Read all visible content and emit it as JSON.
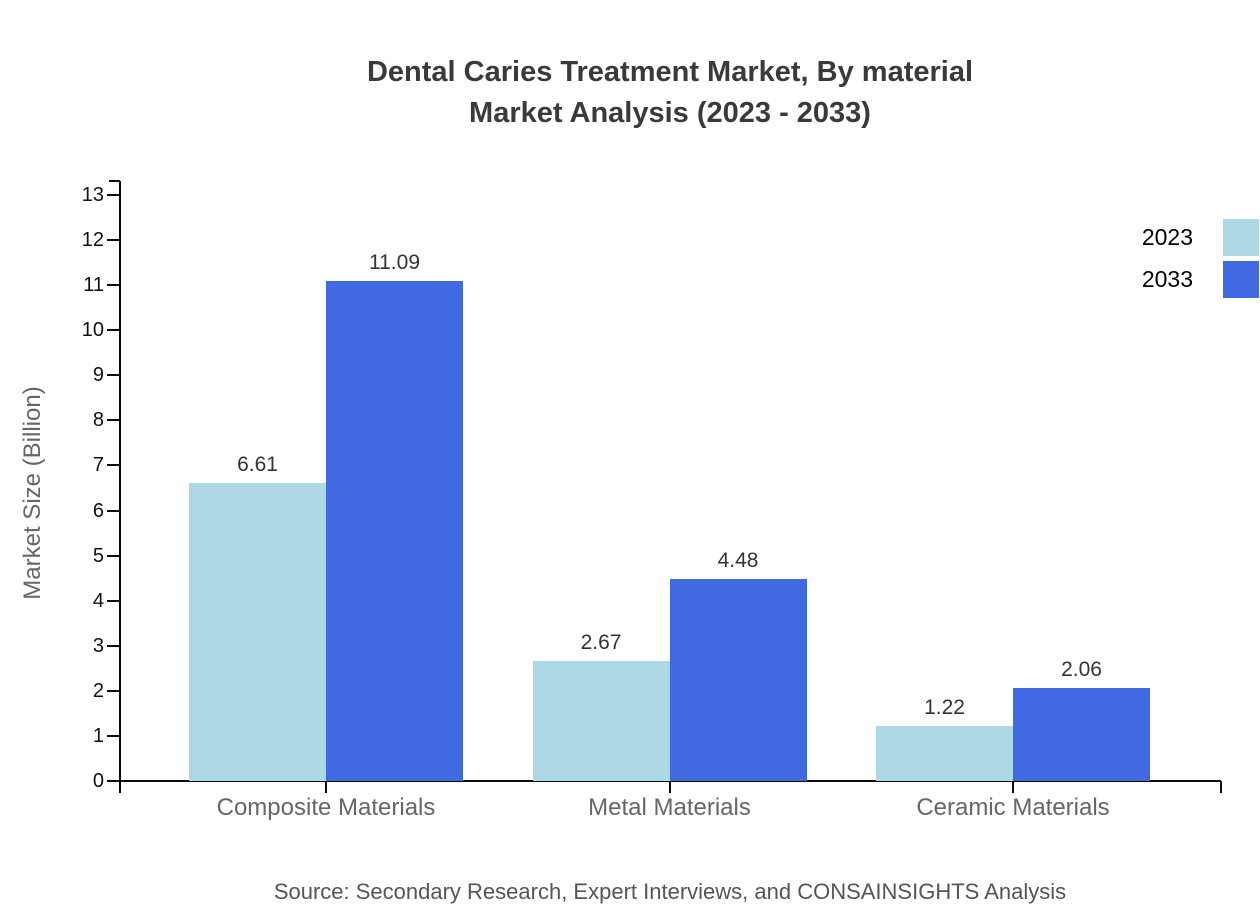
{
  "title": {
    "line1": "Dental Caries Treatment Market, By material",
    "line2": "Market Analysis (2023 - 2033)"
  },
  "source": "Source: Secondary Research, Expert Interviews, and CONSAINSIGHTS Analysis",
  "chart_data": {
    "type": "bar",
    "categories": [
      "Composite Materials",
      "Metal Materials",
      "Ceramic Materials"
    ],
    "series": [
      {
        "name": "2023",
        "color": "#ADD8E6",
        "values": [
          6.61,
          2.67,
          1.22
        ]
      },
      {
        "name": "2033",
        "color": "#4169E1",
        "values": [
          11.09,
          4.48,
          2.06
        ]
      }
    ],
    "title": "Dental Caries Treatment Market, By material Market Analysis (2023 - 2033)",
    "xlabel": "",
    "ylabel": "Market Size (Billion)",
    "ylim": [
      0,
      13.3
    ],
    "yticks": [
      0,
      1,
      2,
      3,
      4,
      5,
      6,
      7,
      8,
      9,
      10,
      11,
      12,
      13
    ],
    "grid": false,
    "value_labels": true,
    "legend_position": "top-right"
  },
  "colors": {
    "background": "#ffffff",
    "axis": "#0a0a0a",
    "title_text": "#3a3a3a",
    "tick_text": "#111111",
    "category_text": "#666666",
    "value_text": "#333333",
    "source_text": "#555555",
    "series_2023": "#ADD8E6",
    "series_2033": "#4169E1"
  }
}
